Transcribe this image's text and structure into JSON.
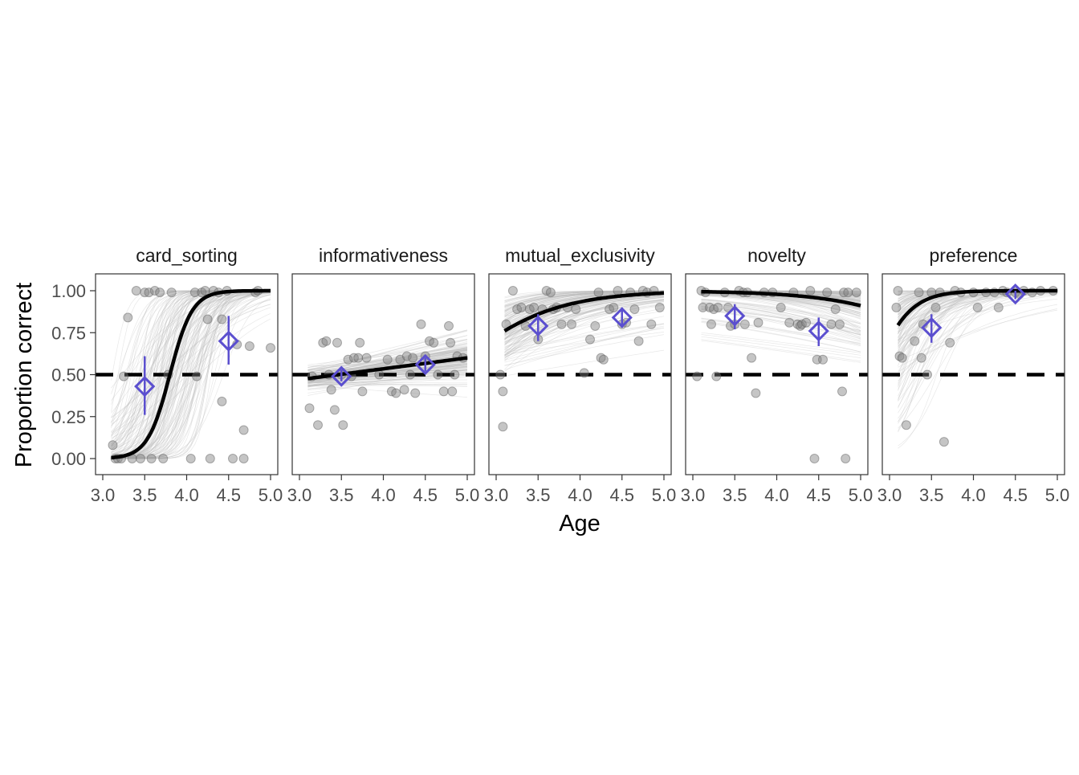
{
  "chart_data": {
    "type": "scatter",
    "xlabel": "Age",
    "ylabel": "Proportion correct",
    "xlim": [
      3.0,
      5.0
    ],
    "ylim": [
      0.0,
      1.0
    ],
    "x_ticks": [
      "3.0",
      "3.5",
      "4.0",
      "4.5",
      "5.0"
    ],
    "y_ticks": [
      "0.00",
      "0.25",
      "0.50",
      "0.75",
      "1.00"
    ],
    "chance_level": 0.5,
    "grid": false,
    "colors": {
      "points": "#7f7f7f",
      "posterior_lines": "#bdbdbd",
      "fit_line": "#000000",
      "chance_line": "#000000",
      "group_means": "#5b4fcf"
    },
    "panels": [
      {
        "name": "card_sorting",
        "curve": {
          "type": "logistic",
          "lower": 0.0,
          "upper": 1.0,
          "midpoint": 3.8,
          "slope": 7.5
        },
        "group_means": [
          {
            "x": 3.5,
            "y": 0.43,
            "lo": 0.26,
            "hi": 0.61
          },
          {
            "x": 4.5,
            "y": 0.7,
            "lo": 0.56,
            "hi": 0.85
          }
        ],
        "points": [
          [
            3.12,
            0.08
          ],
          [
            3.15,
            0.0
          ],
          [
            3.18,
            0.0
          ],
          [
            3.22,
            0.0
          ],
          [
            3.25,
            0.49
          ],
          [
            3.3,
            0.84
          ],
          [
            3.35,
            0.0
          ],
          [
            3.4,
            1.0
          ],
          [
            3.45,
            0.0
          ],
          [
            3.5,
            0.99
          ],
          [
            3.55,
            0.99
          ],
          [
            3.58,
            0.0
          ],
          [
            3.62,
            1.0
          ],
          [
            3.68,
            0.99
          ],
          [
            3.72,
            0.0
          ],
          [
            3.78,
            0.5
          ],
          [
            3.82,
            0.99
          ],
          [
            4.05,
            0.0
          ],
          [
            4.1,
            0.99
          ],
          [
            4.12,
            0.49
          ],
          [
            4.18,
            0.99
          ],
          [
            4.22,
            1.0
          ],
          [
            4.25,
            0.83
          ],
          [
            4.28,
            0.0
          ],
          [
            4.32,
            1.0
          ],
          [
            4.38,
            0.99
          ],
          [
            4.42,
            0.34
          ],
          [
            4.42,
            0.83
          ],
          [
            4.48,
            1.0
          ],
          [
            4.55,
            0.0
          ],
          [
            4.6,
            0.68
          ],
          [
            4.68,
            0.17
          ],
          [
            4.68,
            0.0
          ],
          [
            4.75,
            0.67
          ],
          [
            4.82,
            0.99
          ],
          [
            4.85,
            1.0
          ],
          [
            5.0,
            0.66
          ]
        ]
      },
      {
        "name": "informativeness",
        "curve": {
          "type": "linear",
          "intercept_at_3": 0.47,
          "slope": 0.065
        },
        "group_means": [
          {
            "x": 3.5,
            "y": 0.49,
            "lo": 0.46,
            "hi": 0.53
          },
          {
            "x": 4.5,
            "y": 0.56,
            "lo": 0.52,
            "hi": 0.6
          }
        ],
        "points": [
          [
            3.12,
            0.3
          ],
          [
            3.15,
            0.49
          ],
          [
            3.22,
            0.2
          ],
          [
            3.28,
            0.69
          ],
          [
            3.32,
            0.7
          ],
          [
            3.35,
            0.5
          ],
          [
            3.38,
            0.41
          ],
          [
            3.42,
            0.29
          ],
          [
            3.45,
            0.69
          ],
          [
            3.5,
            0.5
          ],
          [
            3.52,
            0.2
          ],
          [
            3.58,
            0.59
          ],
          [
            3.62,
            0.49
          ],
          [
            3.65,
            0.6
          ],
          [
            3.7,
            0.6
          ],
          [
            3.72,
            0.69
          ],
          [
            3.75,
            0.4
          ],
          [
            3.8,
            0.6
          ],
          [
            3.95,
            0.5
          ],
          [
            4.05,
            0.59
          ],
          [
            4.1,
            0.4
          ],
          [
            4.15,
            0.39
          ],
          [
            4.2,
            0.59
          ],
          [
            4.25,
            0.41
          ],
          [
            4.28,
            0.61
          ],
          [
            4.32,
            0.5
          ],
          [
            4.35,
            0.6
          ],
          [
            4.38,
            0.39
          ],
          [
            4.45,
            0.8
          ],
          [
            4.5,
            0.61
          ],
          [
            4.55,
            0.7
          ],
          [
            4.6,
            0.69
          ],
          [
            4.65,
            0.5
          ],
          [
            4.72,
            0.4
          ],
          [
            4.78,
            0.79
          ],
          [
            4.8,
            0.69
          ],
          [
            4.82,
            0.4
          ],
          [
            4.85,
            0.5
          ],
          [
            4.88,
            0.61
          ],
          [
            4.95,
            0.6
          ]
        ]
      },
      {
        "name": "mutual_exclusivity",
        "curve": {
          "type": "logistic",
          "lower": 0.0,
          "upper": 1.0,
          "midpoint": 2.4,
          "slope": 1.65
        },
        "group_means": [
          {
            "x": 3.5,
            "y": 0.79,
            "lo": 0.7,
            "hi": 0.86
          },
          {
            "x": 4.5,
            "y": 0.84,
            "lo": 0.78,
            "hi": 0.9
          }
        ],
        "points": [
          [
            3.05,
            0.5
          ],
          [
            3.08,
            0.4
          ],
          [
            3.08,
            0.19
          ],
          [
            3.12,
            0.8
          ],
          [
            3.2,
            1.0
          ],
          [
            3.25,
            0.89
          ],
          [
            3.3,
            0.9
          ],
          [
            3.35,
            0.79
          ],
          [
            3.4,
            0.89
          ],
          [
            3.45,
            0.9
          ],
          [
            3.5,
            0.71
          ],
          [
            3.55,
            0.89
          ],
          [
            3.6,
            1.0
          ],
          [
            3.65,
            0.99
          ],
          [
            3.68,
            0.89
          ],
          [
            3.72,
            0.9
          ],
          [
            3.78,
            0.8
          ],
          [
            3.85,
            0.9
          ],
          [
            3.9,
            0.8
          ],
          [
            3.95,
            0.89
          ],
          [
            4.05,
            0.51
          ],
          [
            4.12,
            0.71
          ],
          [
            4.18,
            0.79
          ],
          [
            4.22,
            0.99
          ],
          [
            4.25,
            0.6
          ],
          [
            4.28,
            0.59
          ],
          [
            4.35,
            0.89
          ],
          [
            4.4,
            0.9
          ],
          [
            4.45,
            1.0
          ],
          [
            4.5,
            0.8
          ],
          [
            4.55,
            0.81
          ],
          [
            4.6,
            0.99
          ],
          [
            4.65,
            0.89
          ],
          [
            4.7,
            0.7
          ],
          [
            4.75,
            1.0
          ],
          [
            4.8,
            0.99
          ],
          [
            4.85,
            0.8
          ],
          [
            4.88,
            1.0
          ],
          [
            4.95,
            0.9
          ]
        ]
      },
      {
        "name": "novelty",
        "curve": {
          "type": "logistic",
          "lower": 0.0,
          "upper": 1.0,
          "midpoint": 6.55,
          "slope": -1.5
        },
        "group_means": [
          {
            "x": 3.5,
            "y": 0.85,
            "lo": 0.77,
            "hi": 0.92
          },
          {
            "x": 4.5,
            "y": 0.76,
            "lo": 0.67,
            "hi": 0.84
          }
        ],
        "points": [
          [
            3.05,
            0.49
          ],
          [
            3.1,
            1.0
          ],
          [
            3.12,
            0.9
          ],
          [
            3.15,
            0.99
          ],
          [
            3.2,
            0.9
          ],
          [
            3.22,
            0.8
          ],
          [
            3.25,
            0.89
          ],
          [
            3.28,
            0.49
          ],
          [
            3.3,
            0.9
          ],
          [
            3.38,
            0.99
          ],
          [
            3.42,
            0.9
          ],
          [
            3.45,
            0.79
          ],
          [
            3.5,
            0.8
          ],
          [
            3.55,
            1.0
          ],
          [
            3.6,
            0.99
          ],
          [
            3.62,
            0.8
          ],
          [
            3.65,
            0.99
          ],
          [
            3.7,
            0.6
          ],
          [
            3.75,
            0.39
          ],
          [
            3.78,
            0.81
          ],
          [
            3.85,
            0.99
          ],
          [
            3.95,
            0.99
          ],
          [
            4.05,
            0.9
          ],
          [
            4.15,
            0.81
          ],
          [
            4.2,
            0.99
          ],
          [
            4.25,
            0.8
          ],
          [
            4.28,
            0.79
          ],
          [
            4.3,
            0.8
          ],
          [
            4.35,
            0.81
          ],
          [
            4.4,
            1.0
          ],
          [
            4.45,
            0.0
          ],
          [
            4.48,
            0.59
          ],
          [
            4.55,
            0.59
          ],
          [
            4.6,
            0.99
          ],
          [
            4.65,
            0.8
          ],
          [
            4.7,
            0.89
          ],
          [
            4.75,
            0.8
          ],
          [
            4.78,
            0.4
          ],
          [
            4.8,
            0.99
          ],
          [
            4.82,
            0.0
          ],
          [
            4.85,
            0.99
          ],
          [
            4.95,
            0.99
          ]
        ]
      },
      {
        "name": "preference",
        "curve": {
          "type": "logistic",
          "lower": 0.0,
          "upper": 1.0,
          "midpoint": 2.8,
          "slope": 4.5
        },
        "group_means": [
          {
            "x": 3.5,
            "y": 0.78,
            "lo": 0.69,
            "hi": 0.86
          },
          {
            "x": 4.5,
            "y": 0.98,
            "lo": 0.95,
            "hi": 1.0
          }
        ],
        "points": [
          [
            3.08,
            0.9
          ],
          [
            3.1,
            1.0
          ],
          [
            3.12,
            0.61
          ],
          [
            3.15,
            0.6
          ],
          [
            3.2,
            0.2
          ],
          [
            3.3,
            0.7
          ],
          [
            3.35,
            0.99
          ],
          [
            3.38,
            0.6
          ],
          [
            3.4,
            0.8
          ],
          [
            3.45,
            0.5
          ],
          [
            3.5,
            0.99
          ],
          [
            3.55,
            0.9
          ],
          [
            3.6,
            0.99
          ],
          [
            3.65,
            0.1
          ],
          [
            3.72,
            0.69
          ],
          [
            3.78,
            1.0
          ],
          [
            3.85,
            0.99
          ],
          [
            4.0,
            0.99
          ],
          [
            4.05,
            0.9
          ],
          [
            4.15,
            0.99
          ],
          [
            4.25,
            0.99
          ],
          [
            4.3,
            0.9
          ],
          [
            4.35,
            1.0
          ],
          [
            4.4,
            0.99
          ],
          [
            4.5,
            0.99
          ],
          [
            4.55,
            0.98
          ],
          [
            4.6,
            1.0
          ],
          [
            4.7,
            0.99
          ],
          [
            4.8,
            1.0
          ],
          [
            4.95,
            1.0
          ]
        ]
      }
    ]
  }
}
